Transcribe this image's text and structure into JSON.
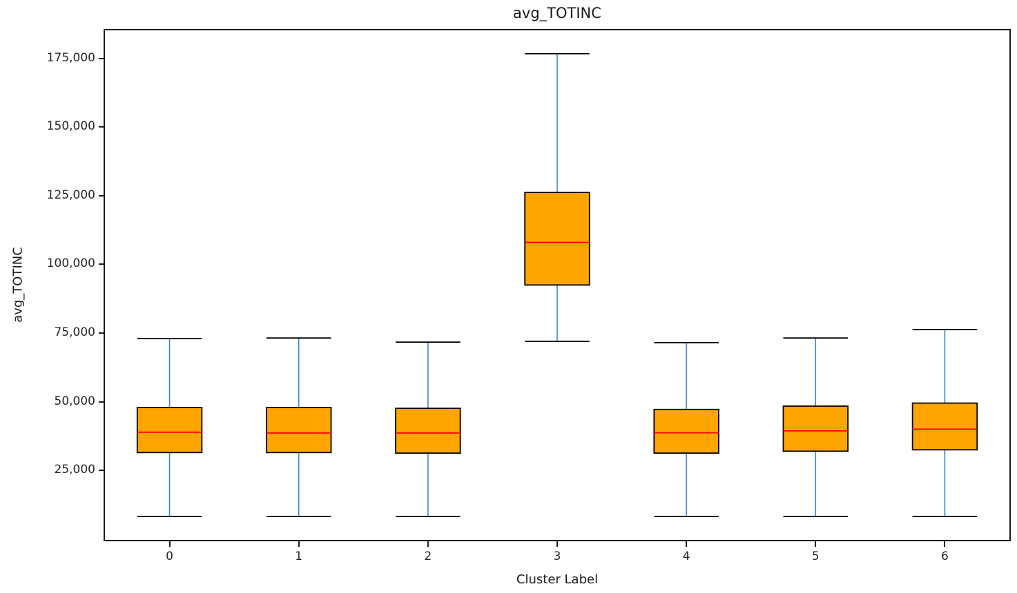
{
  "chart_data": {
    "type": "boxplot",
    "title": "avg_TOTINC",
    "xlabel": "Cluster Label",
    "ylabel": "avg_TOTINC",
    "categories": [
      "0",
      "1",
      "2",
      "3",
      "4",
      "5",
      "6"
    ],
    "series": [
      {
        "cluster": "0",
        "whisker_low": 8200,
        "q1": 31500,
        "median": 38900,
        "q3": 47900,
        "whisker_high": 73000
      },
      {
        "cluster": "1",
        "whisker_low": 8200,
        "q1": 31500,
        "median": 38600,
        "q3": 47900,
        "whisker_high": 73200
      },
      {
        "cluster": "2",
        "whisker_low": 8200,
        "q1": 31300,
        "median": 38600,
        "q3": 47600,
        "whisker_high": 71700
      },
      {
        "cluster": "3",
        "whisker_low": 72000,
        "q1": 92500,
        "median": 108000,
        "q3": 126200,
        "whisker_high": 176700
      },
      {
        "cluster": "4",
        "whisker_low": 8200,
        "q1": 31300,
        "median": 38700,
        "q3": 47200,
        "whisker_high": 71500
      },
      {
        "cluster": "5",
        "whisker_low": 8200,
        "q1": 32000,
        "median": 39400,
        "q3": 48400,
        "whisker_high": 73200
      },
      {
        "cluster": "6",
        "whisker_low": 8200,
        "q1": 32500,
        "median": 40000,
        "q3": 49500,
        "whisker_high": 76300
      }
    ],
    "y_ticks": {
      "values": [
        25000,
        50000,
        75000,
        100000,
        125000,
        150000,
        175000
      ],
      "labels": [
        "25,000",
        "50,000",
        "75,000",
        "100,000",
        "125,000",
        "150,000",
        "175,000"
      ]
    },
    "x_tick_labels": [
      "0",
      "1",
      "2",
      "3",
      "4",
      "5",
      "6"
    ],
    "xlim": [
      -0.5,
      6.5
    ],
    "ylim": [
      -300,
      185200
    ],
    "box_width_units": 0.5,
    "cap_width_units": 0.25,
    "grid": false,
    "legend": false,
    "colors": {
      "box_fill": "#FFA500",
      "box_edge": "#000000",
      "median": "#FF0000",
      "whisker": "#3A87C8",
      "cap": "#000000",
      "frame": "#1b1b1b",
      "text": "#1a1a1a"
    }
  }
}
